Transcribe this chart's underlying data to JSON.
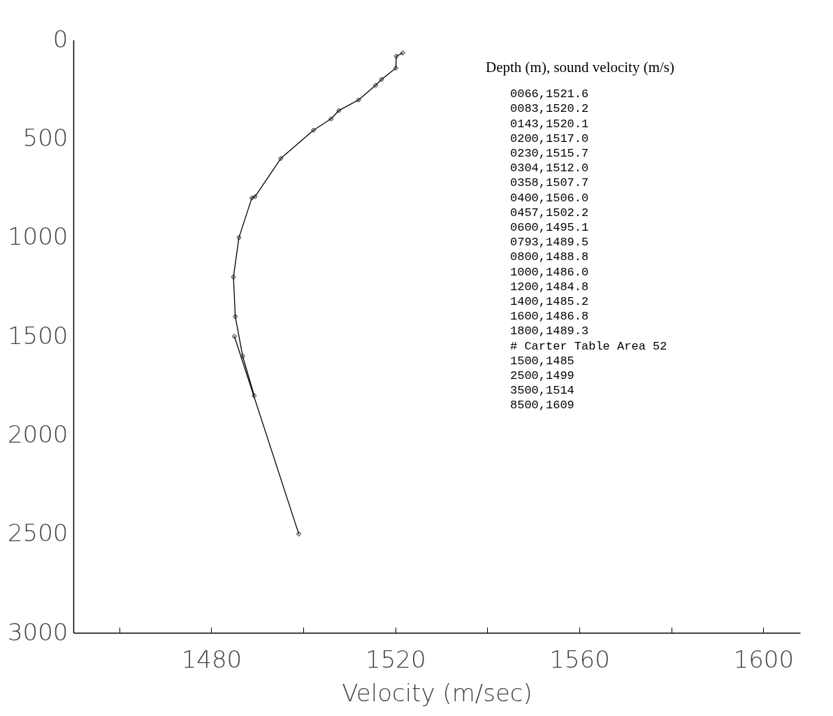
{
  "chart_data": {
    "type": "line",
    "xlabel": "Velocity (m/sec)",
    "xlim": [
      1450,
      1608
    ],
    "xticks": [
      {
        "value": 1460,
        "label": null
      },
      1480,
      {
        "value": 1500,
        "label": null
      },
      1520,
      {
        "value": 1540,
        "label": null
      },
      1560,
      {
        "value": 1580,
        "label": null
      },
      1600
    ],
    "ylim": [
      3000,
      0
    ],
    "yticks": [
      0,
      500,
      1000,
      1500,
      2000,
      2500,
      3000
    ],
    "grid": false,
    "marker": "cross",
    "line_style": "solid",
    "series": [
      {
        "color": "#000000",
        "x": [
          1521.6,
          1520.2,
          1520.1,
          1517.0,
          1515.7,
          1512.0,
          1507.7,
          1506.0,
          1502.2,
          1495.1,
          1489.5,
          1488.8,
          1486.0,
          1484.8,
          1485.2,
          1486.8,
          1489.3
        ],
        "values": [
          66,
          83,
          143,
          200,
          230,
          304,
          358,
          400,
          457,
          600,
          793,
          800,
          1000,
          1200,
          1400,
          1600,
          1800
        ]
      },
      {
        "color": "#000000",
        "x": [
          1485,
          1499
        ],
        "values": [
          1500,
          2500
        ]
      }
    ],
    "annotations": [
      "Depth (m), sound velocity (m/s)",
      "0066,1521.6",
      "0083,1520.2",
      "0143,1520.1",
      "0200,1517.0",
      "0230,1515.7",
      "0304,1512.0",
      "0358,1507.7",
      "0400,1506.0",
      "0457,1502.2",
      "0600,1495.1",
      "0793,1489.5",
      "0800,1488.8",
      "1000,1486.0",
      "1200,1484.8",
      "1400,1485.2",
      "1600,1486.8",
      "1800,1489.3",
      "# Carter Table Area 52",
      "1500,1485",
      "2500,1499",
      "3500,1514",
      "8500,1609"
    ]
  }
}
